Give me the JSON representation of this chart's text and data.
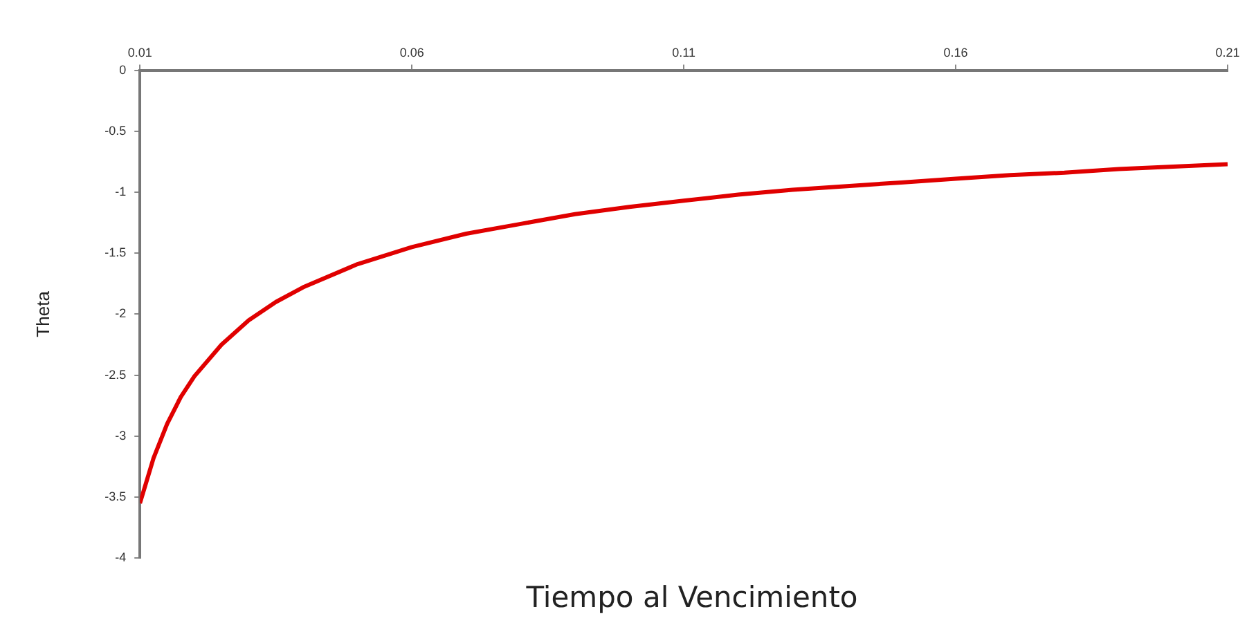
{
  "chart_data": {
    "type": "line",
    "xlabel": "Tiempo al Vencimiento",
    "ylabel": "Theta",
    "x": [
      0.01,
      0.0125,
      0.015,
      0.0175,
      0.02,
      0.025,
      0.03,
      0.035,
      0.04,
      0.05,
      0.06,
      0.07,
      0.08,
      0.09,
      0.1,
      0.11,
      0.12,
      0.13,
      0.14,
      0.15,
      0.16,
      0.17,
      0.18,
      0.19,
      0.2,
      0.21
    ],
    "series": [
      {
        "color": "#e00000",
        "values": [
          -3.55,
          -3.18,
          -2.9,
          -2.68,
          -2.51,
          -2.25,
          -2.05,
          -1.9,
          -1.78,
          -1.59,
          -1.45,
          -1.34,
          -1.26,
          -1.18,
          -1.12,
          -1.07,
          -1.02,
          -0.98,
          -0.95,
          -0.92,
          -0.89,
          -0.86,
          -0.84,
          -0.81,
          -0.79,
          -0.77
        ]
      }
    ],
    "xlim": [
      0.01,
      0.21
    ],
    "xticks": [
      0.01,
      0.06,
      0.11,
      0.16,
      0.21
    ],
    "ylim": [
      -4,
      0
    ],
    "yticks": [
      -4,
      -3.5,
      -3,
      -2.5,
      -2,
      -1.5,
      -1,
      -0.5,
      0
    ],
    "grid": false,
    "legend": false,
    "marker": "none",
    "line_style": "solid"
  }
}
